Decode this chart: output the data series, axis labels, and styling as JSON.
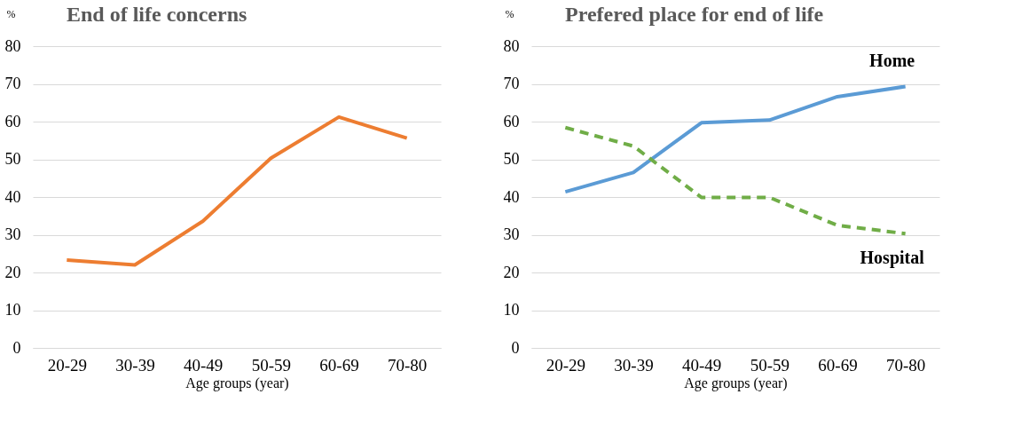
{
  "chart_data": [
    {
      "type": "line",
      "title": "End of life concerns",
      "ylabel": "%",
      "xlabel": "Age groups (year)",
      "categories": [
        "20-29",
        "30-39",
        "40-49",
        "50-59",
        "60-69",
        "70-80"
      ],
      "series": [
        {
          "color": "#ed7d31",
          "values": [
            23.3,
            22.0,
            33.6,
            50.3,
            61.2,
            55.6
          ]
        }
      ],
      "ylim": [
        0,
        80
      ],
      "yticks": [
        0,
        10,
        20,
        30,
        40,
        50,
        60,
        70,
        80
      ],
      "grid": "y",
      "marker": "none",
      "line_style": "solid"
    },
    {
      "type": "line",
      "title": "Prefered place for end of life",
      "ylabel": "%",
      "xlabel": "Age groups (year)",
      "categories": [
        "20-29",
        "30-39",
        "40-49",
        "50-59",
        "60-69",
        "70-80"
      ],
      "series": [
        {
          "name": "Home",
          "color": "#5b9bd5",
          "values": [
            41.4,
            46.5,
            59.7,
            60.4,
            66.6,
            69.3
          ],
          "line_style": "solid"
        },
        {
          "name": "Hospital",
          "color": "#70ad47",
          "values": [
            58.4,
            53.5,
            39.9,
            39.9,
            32.5,
            30.3
          ],
          "line_style": "dashed"
        }
      ],
      "ylim": [
        0,
        80
      ],
      "yticks": [
        0,
        10,
        20,
        30,
        40,
        50,
        60,
        70,
        80
      ],
      "grid": "y",
      "marker": "none"
    }
  ]
}
